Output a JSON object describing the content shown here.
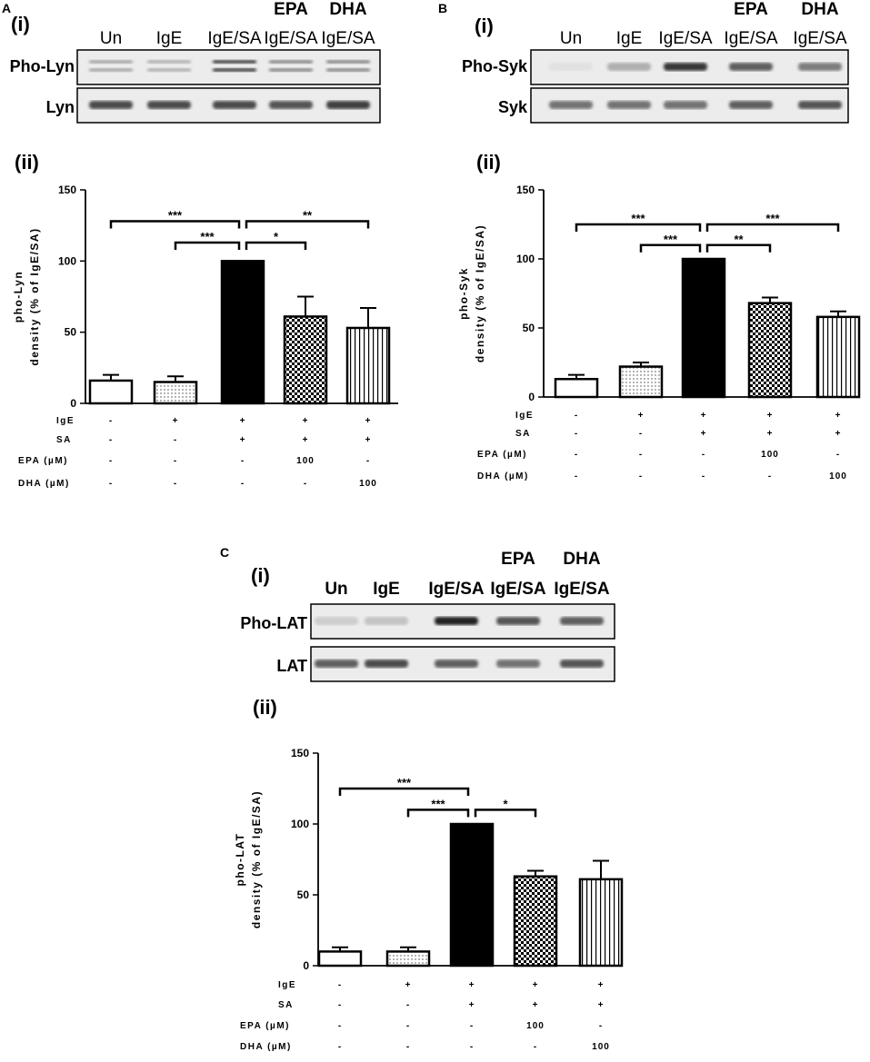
{
  "panels": [
    {
      "letter": "A",
      "blot_part": "(i)",
      "chart_part": "(ii)",
      "lanes": [
        "Un",
        "IgE",
        "IgE/SA",
        "IgE/SA",
        "IgE/SA"
      ],
      "lane_headers": [
        "",
        "",
        "",
        "EPA",
        "DHA"
      ],
      "rows": [
        {
          "label": "Pho-Lyn",
          "intensity": [
            0.35,
            0.3,
            0.85,
            0.5,
            0.5
          ]
        },
        {
          "label": "Lyn",
          "intensity": [
            0.8,
            0.8,
            0.8,
            0.75,
            0.85
          ]
        }
      ]
    },
    {
      "letter": "B",
      "blot_part": "(i)",
      "chart_part": "(ii)",
      "lanes": [
        "Un",
        "IgE",
        "IgE/SA",
        "IgE/SA",
        "IgE/SA"
      ],
      "lane_headers": [
        "",
        "",
        "",
        "EPA",
        "DHA"
      ],
      "rows": [
        {
          "label": "Pho-Syk",
          "intensity": [
            0.05,
            0.3,
            0.9,
            0.7,
            0.55
          ]
        },
        {
          "label": "Syk",
          "intensity": [
            0.6,
            0.6,
            0.6,
            0.7,
            0.75
          ]
        }
      ]
    },
    {
      "letter": "C",
      "blot_part": "(i)",
      "chart_part": "(ii)",
      "lanes": [
        "Un",
        "IgE",
        "IgE/SA",
        "IgE/SA",
        "IgE/SA"
      ],
      "lane_headers": [
        "",
        "",
        "",
        "EPA",
        "DHA"
      ],
      "rows": [
        {
          "label": "Pho-LAT",
          "intensity": [
            0.15,
            0.2,
            1.0,
            0.75,
            0.7
          ]
        },
        {
          "label": "LAT",
          "intensity": [
            0.7,
            0.8,
            0.7,
            0.6,
            0.75
          ]
        }
      ]
    }
  ],
  "chart_data": [
    {
      "type": "bar",
      "panel": "A",
      "ylabel": "pho-Lyn\ndensity (% of IgE/SA)",
      "ylim": [
        0,
        150
      ],
      "yticks": [
        0,
        50,
        100,
        150
      ],
      "series": [
        {
          "values": [
            16,
            15,
            100,
            61,
            53
          ],
          "errors": [
            4,
            4,
            0,
            14,
            14
          ]
        }
      ],
      "fills": [
        "white",
        "dots",
        "black",
        "checker",
        "vstripes"
      ],
      "conditions": [
        {
          "label": "IgE",
          "values": [
            "-",
            "+",
            "+",
            "+",
            "+"
          ]
        },
        {
          "label": "SA",
          "values": [
            "-",
            "-",
            "+",
            "+",
            "+"
          ]
        },
        {
          "label": "EPA (µM)",
          "values": [
            "-",
            "-",
            "-",
            "100",
            "-"
          ]
        },
        {
          "label": "DHA (µM)",
          "values": [
            "-",
            "-",
            "-",
            "-",
            "100"
          ]
        }
      ],
      "significance": [
        {
          "from": 0,
          "to": 2,
          "label": "***",
          "level": 128
        },
        {
          "from": 1,
          "to": 2,
          "label": "***",
          "level": 113
        },
        {
          "from": 2,
          "to": 3,
          "label": "*",
          "level": 113
        },
        {
          "from": 2,
          "to": 4,
          "label": "**",
          "level": 128
        }
      ]
    },
    {
      "type": "bar",
      "panel": "B",
      "ylabel": "pho-Syk\ndensity (% of IgE/SA)",
      "ylim": [
        0,
        150
      ],
      "yticks": [
        0,
        50,
        100,
        150
      ],
      "series": [
        {
          "values": [
            13,
            22,
            100,
            68,
            58
          ],
          "errors": [
            3,
            3,
            0,
            4,
            4
          ]
        }
      ],
      "fills": [
        "white",
        "dots",
        "black",
        "checker",
        "vstripes"
      ],
      "conditions": [
        {
          "label": "IgE",
          "values": [
            "-",
            "+",
            "+",
            "+",
            "+"
          ]
        },
        {
          "label": "SA",
          "values": [
            "-",
            "-",
            "+",
            "+",
            "+"
          ]
        },
        {
          "label": "EPA (µM)",
          "values": [
            "-",
            "-",
            "-",
            "100",
            "-"
          ]
        },
        {
          "label": "DHA (µM)",
          "values": [
            "-",
            "-",
            "-",
            "-",
            "100"
          ]
        }
      ],
      "significance": [
        {
          "from": 0,
          "to": 2,
          "label": "***",
          "level": 125
        },
        {
          "from": 1,
          "to": 2,
          "label": "***",
          "level": 110
        },
        {
          "from": 2,
          "to": 3,
          "label": "**",
          "level": 110
        },
        {
          "from": 2,
          "to": 4,
          "label": "***",
          "level": 125
        }
      ]
    },
    {
      "type": "bar",
      "panel": "C",
      "ylabel": "pho-LAT\ndensity (% of IgE/SA)",
      "ylim": [
        0,
        150
      ],
      "yticks": [
        0,
        50,
        100,
        150
      ],
      "series": [
        {
          "values": [
            10,
            10,
            100,
            63,
            61
          ],
          "errors": [
            3,
            3,
            0,
            4,
            13
          ]
        }
      ],
      "fills": [
        "white",
        "dots",
        "black",
        "checker",
        "vstripes"
      ],
      "conditions": [
        {
          "label": "IgE",
          "values": [
            "-",
            "+",
            "+",
            "+",
            "+"
          ]
        },
        {
          "label": "SA",
          "values": [
            "-",
            "-",
            "+",
            "+",
            "+"
          ]
        },
        {
          "label": "EPA (µM)",
          "values": [
            "-",
            "-",
            "-",
            "100",
            "-"
          ]
        },
        {
          "label": "DHA (µM)",
          "values": [
            "-",
            "-",
            "-",
            "-",
            "100"
          ]
        }
      ],
      "significance": [
        {
          "from": 0,
          "to": 2,
          "label": "***",
          "level": 125
        },
        {
          "from": 1,
          "to": 2,
          "label": "***",
          "level": 110
        },
        {
          "from": 2,
          "to": 3,
          "label": "*",
          "level": 110
        }
      ]
    }
  ]
}
